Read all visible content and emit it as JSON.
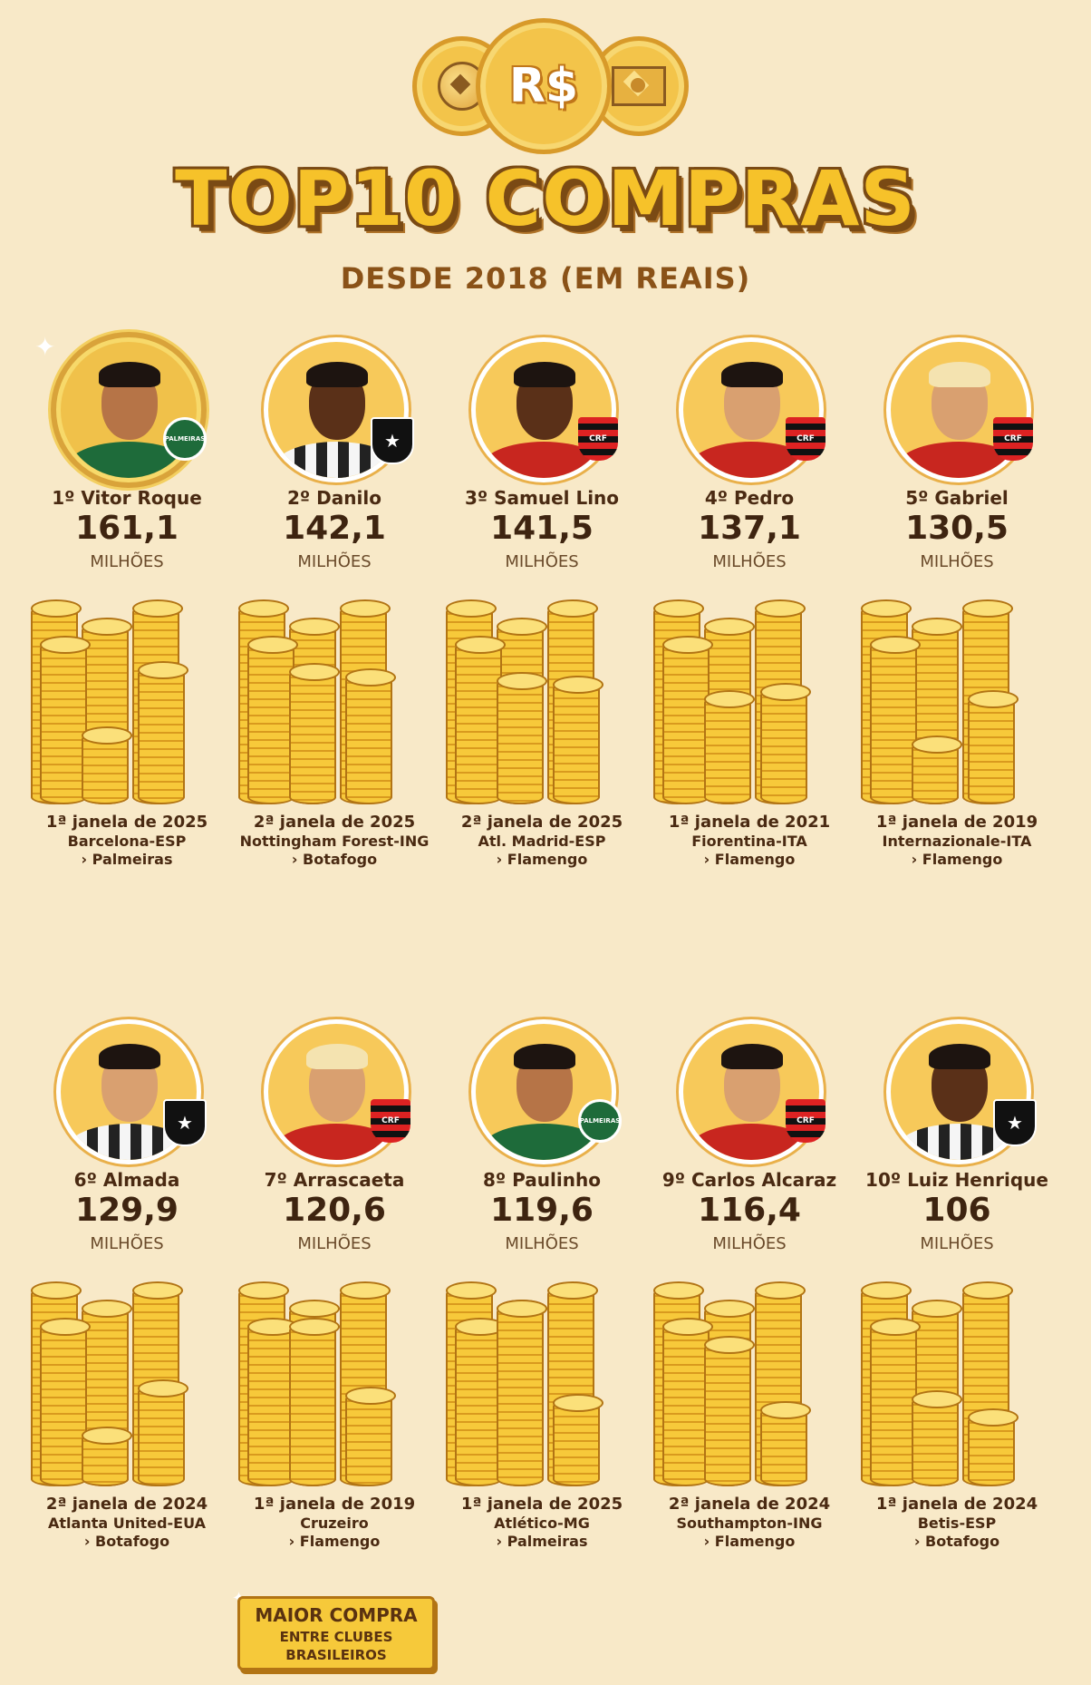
{
  "header": {
    "coin_symbol": "R$",
    "title": "TOP10 COMPRAS",
    "subtitle": "DESDE 2018 (EM REAIS)"
  },
  "unit_label": "MILHÕES",
  "players": [
    {
      "name": "1º Vitor Roque",
      "value": "161,1",
      "window": "1ª janela de 2025",
      "from": "Barcelona-ESP",
      "to": "› Palmeiras",
      "club": "palmeiras"
    },
    {
      "name": "2º Danilo",
      "value": "142,1",
      "window": "2ª janela de 2025",
      "from": "Nottingham Forest-ING",
      "to": "› Botafogo",
      "club": "botafogo"
    },
    {
      "name": "3º Samuel Lino",
      "value": "141,5",
      "window": "2ª janela de 2025",
      "from": "Atl. Madrid-ESP",
      "to": "› Flamengo",
      "club": "flamengo"
    },
    {
      "name": "4º Pedro",
      "value": "137,1",
      "window": "1ª janela de 2021",
      "from": "Fiorentina-ITA",
      "to": "› Flamengo",
      "club": "flamengo"
    },
    {
      "name": "5º Gabriel",
      "value": "130,5",
      "window": "1ª janela de 2019",
      "from": "Internazionale-ITA",
      "to": "› Flamengo",
      "club": "flamengo"
    },
    {
      "name": "6º Almada",
      "value": "129,9",
      "window": "2ª janela de 2024",
      "from": "Atlanta United-EUA",
      "to": "› Botafogo",
      "club": "botafogo"
    },
    {
      "name": "7º Arrascaeta",
      "value": "120,6",
      "window": "1ª janela de 2019",
      "from": "Cruzeiro",
      "to": "› Flamengo",
      "club": "flamengo"
    },
    {
      "name": "8º Paulinho",
      "value": "119,6",
      "window": "1ª janela de 2025",
      "from": "Atlético-MG",
      "to": "› Palmeiras",
      "club": "palmeiras"
    },
    {
      "name": "9º Carlos Alcaraz",
      "value": "116,4",
      "window": "2ª janela de 2024",
      "from": "Southampton-ING",
      "to": "› Flamengo",
      "club": "flamengo"
    },
    {
      "name": "10º Luiz Henrique",
      "value": "106",
      "window": "1ª janela de 2024",
      "from": "Betis-ESP",
      "to": "› Botafogo",
      "club": "botafogo"
    }
  ],
  "badges": {
    "palmeiras": "PALMEIRAS",
    "botafogo": "★",
    "flamengo": "CRF"
  },
  "note": {
    "line1": "MAIOR COMPRA",
    "line2": "ENTRE CLUBES",
    "line3": "BRASILEIROS"
  },
  "colors": {
    "background": "#f8e9c8",
    "gold": "#f6c22a",
    "brown": "#7a4a14"
  }
}
